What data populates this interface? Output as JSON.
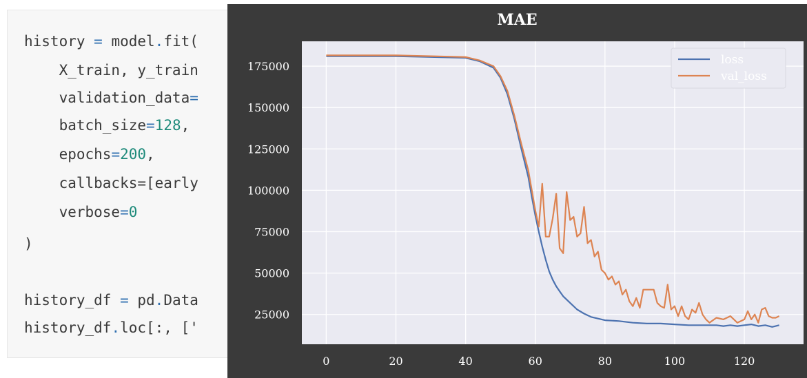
{
  "code": {
    "lines": [
      [
        {
          "t": "history "
        },
        {
          "t": "=",
          "c": "op"
        },
        {
          "t": " model"
        },
        {
          "t": ".",
          "c": "op"
        },
        {
          "t": "fit("
        }
      ],
      [
        {
          "t": "    X_train, y_train"
        }
      ],
      [
        {
          "t": "    validation_data"
        },
        {
          "t": "=",
          "c": "op"
        }
      ],
      [
        {
          "t": "    batch_size"
        },
        {
          "t": "=",
          "c": "op"
        },
        {
          "t": "128",
          "c": "num"
        },
        {
          "t": ","
        }
      ],
      [
        {
          "t": "    epochs"
        },
        {
          "t": "=",
          "c": "op"
        },
        {
          "t": "200",
          "c": "num"
        },
        {
          "t": ","
        }
      ],
      [
        {
          "t": "    callbacks=[early"
        }
      ],
      [
        {
          "t": "    verbose"
        },
        {
          "t": "=",
          "c": "op"
        },
        {
          "t": "0",
          "c": "num"
        }
      ],
      [
        {
          "t": ")"
        }
      ],
      [
        {
          "t": ""
        }
      ],
      [
        {
          "t": "history_df "
        },
        {
          "t": "=",
          "c": "op"
        },
        {
          "t": " pd"
        },
        {
          "t": ".",
          "c": "op"
        },
        {
          "t": "Data"
        }
      ],
      [
        {
          "t": "history_df"
        },
        {
          "t": ".",
          "c": "op"
        },
        {
          "t": "loc[:, ['"
        }
      ]
    ]
  },
  "chart_data": {
    "type": "line",
    "title": "MAE",
    "xlabel": "",
    "ylabel": "",
    "xlim": [
      -7,
      137
    ],
    "ylim": [
      7000,
      190000
    ],
    "xticks": [
      0,
      20,
      40,
      60,
      80,
      100,
      120
    ],
    "yticks": [
      25000,
      50000,
      75000,
      100000,
      125000,
      150000,
      175000
    ],
    "grid": true,
    "legend": "top-right",
    "series": [
      {
        "name": "loss",
        "color": "#4c72b0",
        "x": [
          0,
          20,
          40,
          44,
          48,
          50,
          52,
          54,
          56,
          58,
          59,
          60,
          61,
          62,
          63,
          64,
          65,
          66,
          67,
          68,
          70,
          72,
          74,
          76,
          78,
          80,
          84,
          88,
          92,
          96,
          100,
          104,
          108,
          112,
          114,
          116,
          118,
          120,
          122,
          124,
          126,
          128,
          130
        ],
        "y": [
          181000,
          181000,
          180000,
          178000,
          174000,
          168000,
          158000,
          143000,
          125000,
          108000,
          96000,
          85000,
          75000,
          66000,
          58000,
          51000,
          46000,
          42000,
          39000,
          36000,
          32000,
          28000,
          25500,
          23500,
          22500,
          21500,
          21000,
          20000,
          19500,
          19500,
          19000,
          18500,
          18500,
          18500,
          18000,
          18500,
          18000,
          18500,
          19000,
          18000,
          18500,
          17500,
          18500
        ]
      },
      {
        "name": "val_loss",
        "color": "#dd8452",
        "x": [
          0,
          20,
          40,
          44,
          48,
          50,
          52,
          54,
          56,
          58,
          59,
          60,
          61,
          62,
          63,
          64,
          65,
          66,
          67,
          68,
          69,
          70,
          71,
          72,
          73,
          74,
          75,
          76,
          77,
          78,
          79,
          80,
          81,
          82,
          83,
          84,
          85,
          86,
          87,
          88,
          89,
          90,
          91,
          92,
          94,
          95,
          96,
          97,
          98,
          99,
          100,
          101,
          102,
          103,
          104,
          105,
          106,
          107,
          108,
          109,
          110,
          112,
          114,
          116,
          118,
          120,
          121,
          122,
          123,
          124,
          125,
          126,
          127,
          128,
          129,
          130
        ],
        "y": [
          181500,
          181500,
          180500,
          178500,
          175000,
          169000,
          160000,
          145000,
          128000,
          112000,
          100000,
          88000,
          78000,
          104000,
          72000,
          72000,
          83000,
          98000,
          65000,
          62000,
          99000,
          82000,
          84000,
          72000,
          74000,
          90000,
          68000,
          70000,
          60000,
          63000,
          52000,
          50000,
          46000,
          48000,
          43000,
          45000,
          37000,
          40000,
          33000,
          30000,
          35000,
          29000,
          40000,
          40000,
          40000,
          32000,
          30000,
          29000,
          43000,
          28000,
          30000,
          24000,
          30000,
          24000,
          22000,
          28000,
          26000,
          32000,
          25000,
          22000,
          20000,
          23000,
          22000,
          24000,
          20000,
          22000,
          27000,
          22000,
          25000,
          20000,
          28000,
          29000,
          24000,
          23000,
          23000,
          24000
        ]
      }
    ]
  }
}
